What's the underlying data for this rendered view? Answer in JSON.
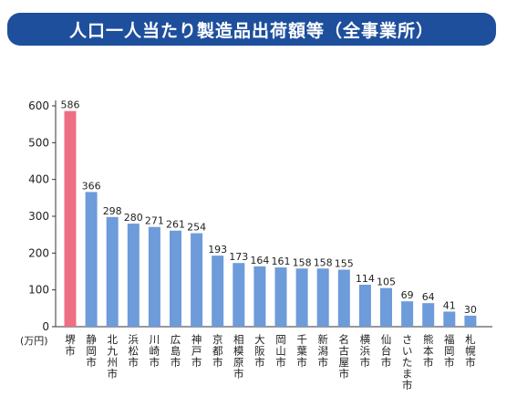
{
  "chart_data": {
    "type": "bar",
    "title": "人口一人当たり製造品出荷額等（全事業所）",
    "unit": "(万円)",
    "ylim": [
      0,
      600
    ],
    "yticks": [
      0,
      100,
      200,
      300,
      400,
      500,
      600
    ],
    "grid": false,
    "legend": "none",
    "categories": [
      "堺市",
      "静岡市",
      "北九州市",
      "浜松市",
      "川崎市",
      "広島市",
      "神戸市",
      "京都市",
      "相模原市",
      "大阪市",
      "岡山市",
      "千葉市",
      "新潟市",
      "名古屋市",
      "横浜市",
      "仙台市",
      "さいたま市",
      "熊本市",
      "福岡市",
      "札幌市"
    ],
    "values": [
      586,
      366,
      298,
      280,
      271,
      261,
      254,
      193,
      173,
      164,
      161,
      158,
      158,
      155,
      114,
      105,
      69,
      64,
      41,
      30
    ],
    "colors": {
      "highlight": "#ee6f84",
      "default": "#6e9bd9",
      "title_bg": "#1e4f9c"
    },
    "highlight_index": 0
  }
}
